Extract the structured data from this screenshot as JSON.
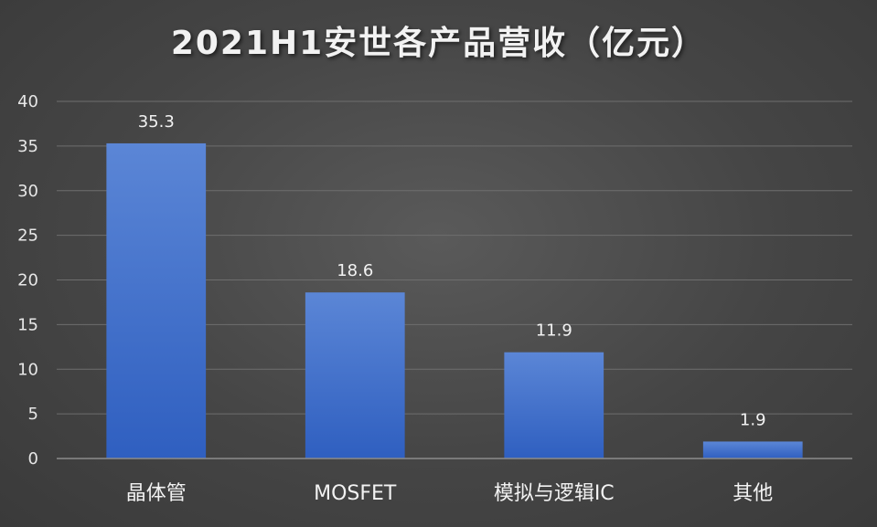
{
  "chart_data": {
    "type": "bar",
    "title": "2021H1安世各产品营收（亿元）",
    "categories": [
      "晶体管",
      "MOSFET",
      "模拟与逻辑IC",
      "其他"
    ],
    "values": [
      35.3,
      18.6,
      11.9,
      1.9
    ],
    "data_labels": [
      "35.3",
      "18.6",
      "11.9",
      "1.9"
    ],
    "ylim": [
      0,
      40
    ],
    "yticks": [
      0,
      5,
      10,
      15,
      20,
      25,
      30,
      35,
      40
    ],
    "xlabel": "",
    "ylabel": "",
    "grid": true,
    "legend": "none",
    "colors": {
      "bar_top": "#5b86d6",
      "bar_bottom": "#2f5fc0",
      "grid": "#6e6e6e",
      "axis": "#8c8c8c",
      "text": "#f2f2f2"
    }
  }
}
